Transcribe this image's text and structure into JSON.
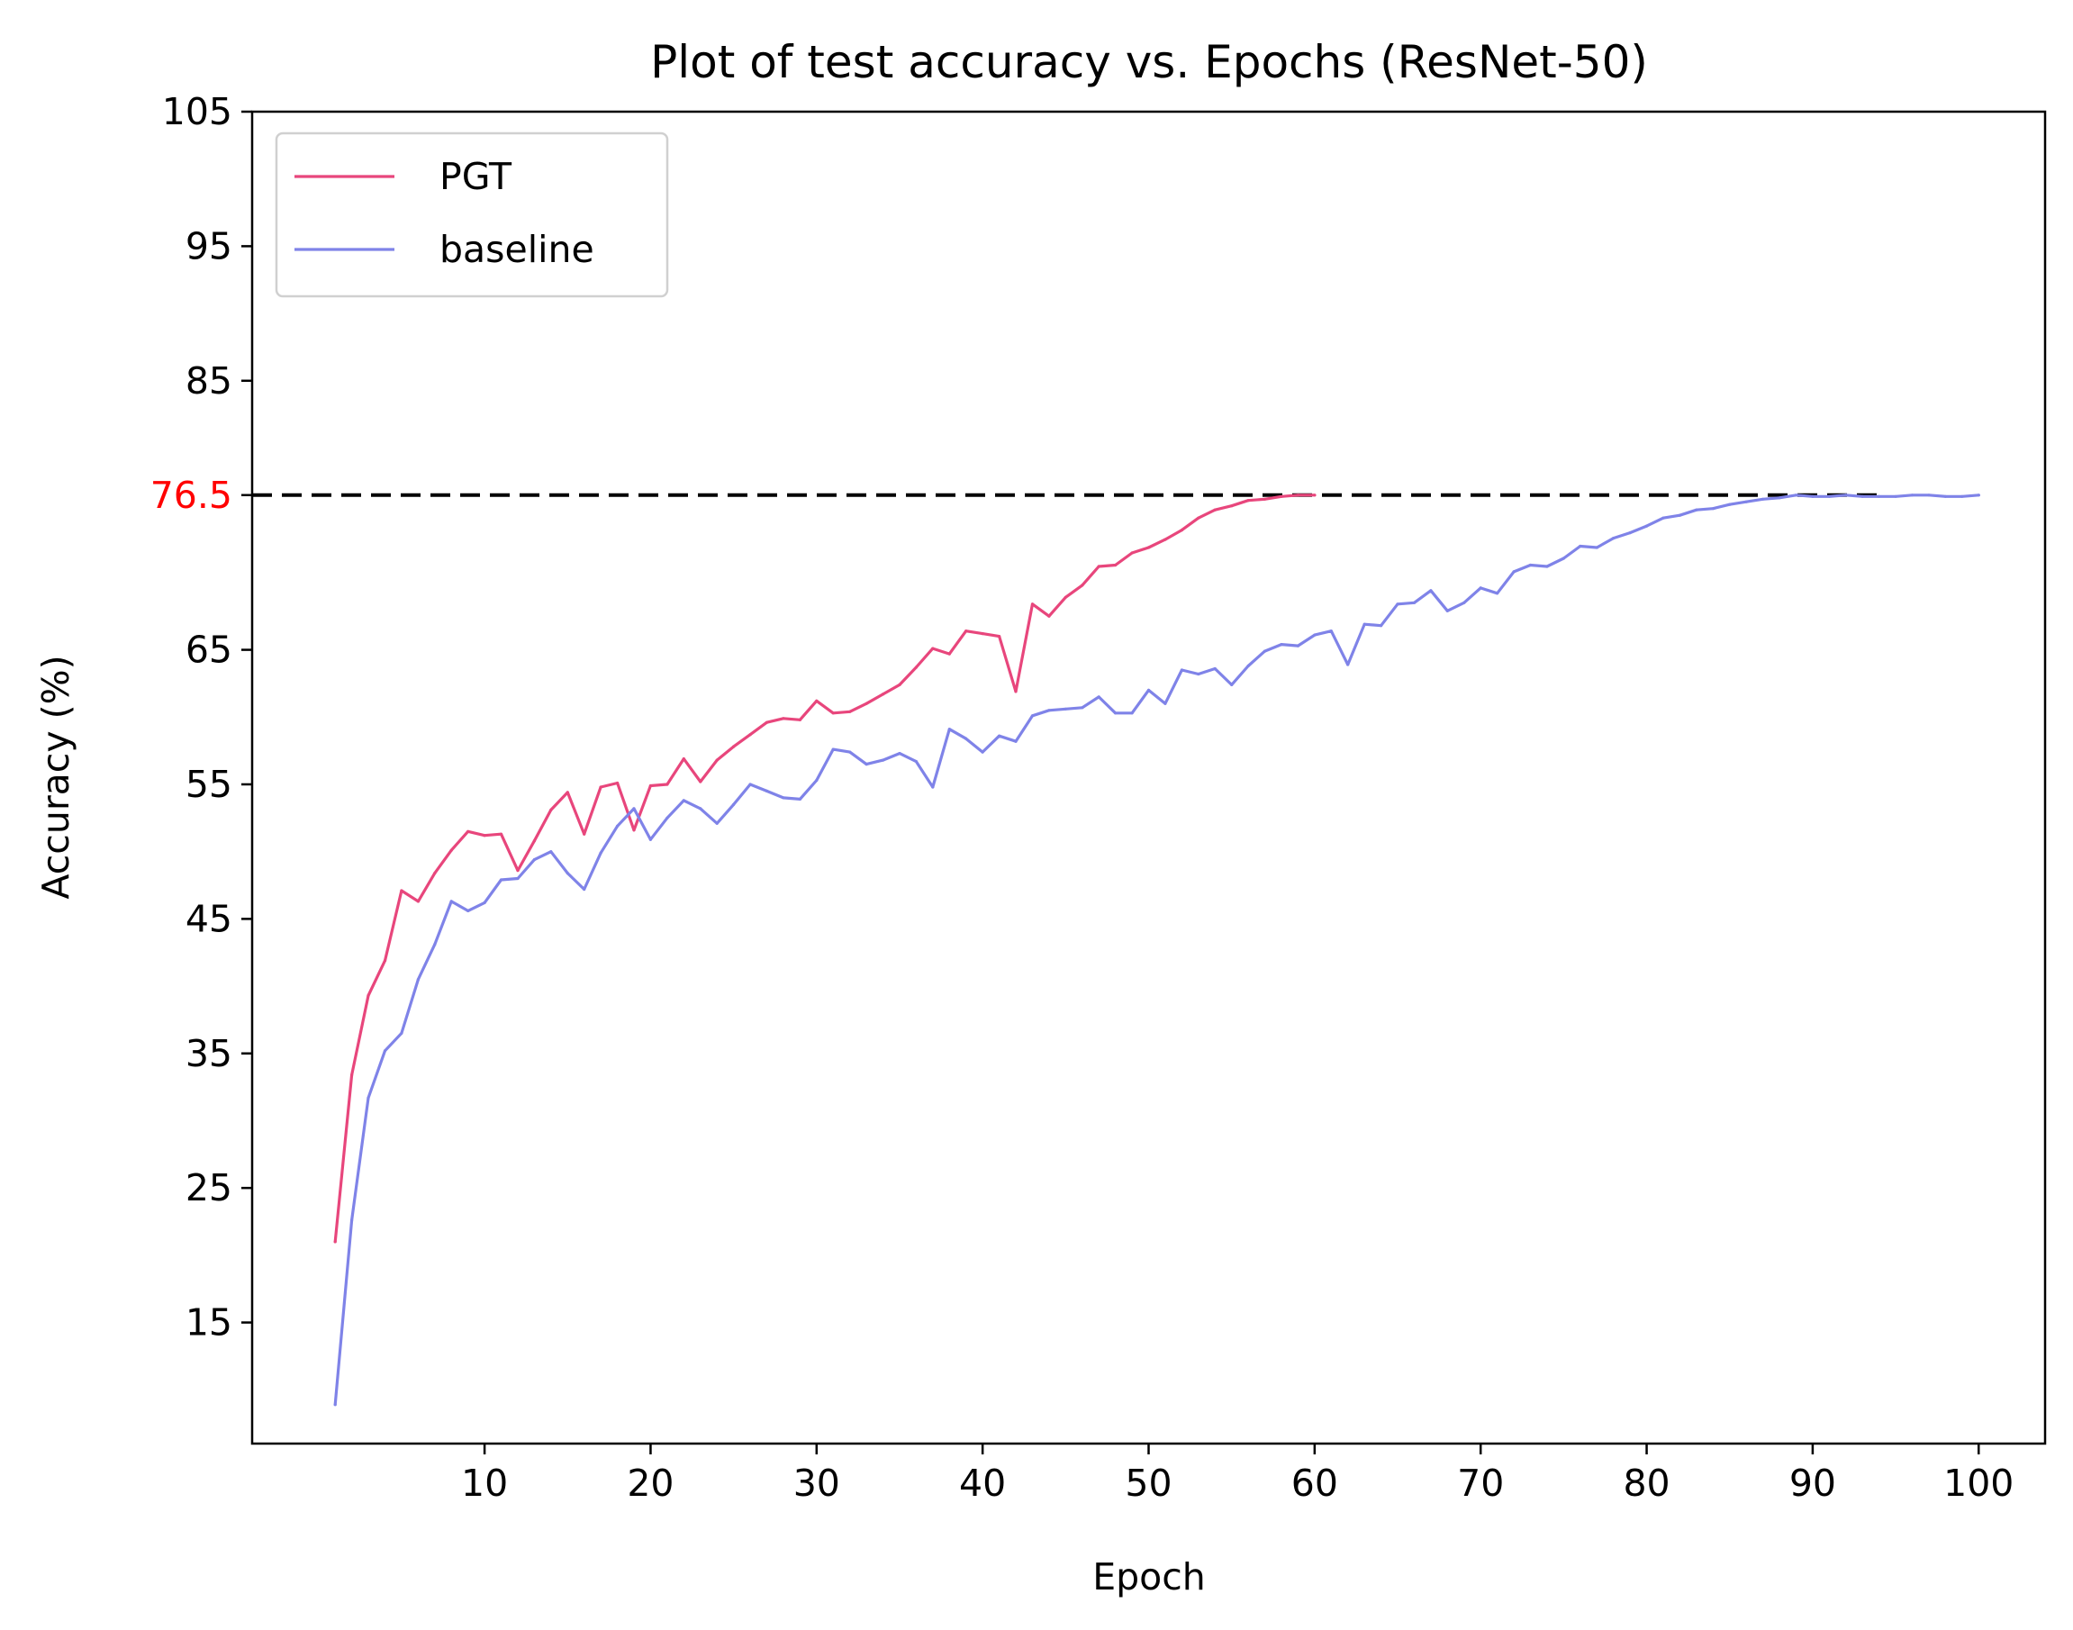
{
  "chart_data": {
    "type": "line",
    "title": "Plot of test accuracy vs. Epochs (ResNet-50)",
    "xlabel": "Epoch",
    "ylabel": "Accuracy (%)",
    "xlim": [
      -4,
      104
    ],
    "ylim": [
      6,
      105
    ],
    "xticks": [
      10,
      20,
      30,
      40,
      50,
      60,
      70,
      80,
      90,
      100
    ],
    "yticks": [
      15,
      25,
      35,
      45,
      55,
      65,
      85,
      95,
      105
    ],
    "reference_line": {
      "y": 76.5,
      "label": "76.5",
      "label_color": "#ff0000",
      "color": "#000000",
      "style": "dashed"
    },
    "grid": false,
    "legend": {
      "position": "top-left"
    },
    "series": [
      {
        "name": "PGT",
        "color": "#e8467c",
        "x": [
          1,
          2,
          3,
          4,
          5,
          6,
          7,
          8,
          9,
          10,
          11,
          12,
          13,
          14,
          15,
          16,
          17,
          18,
          19,
          20,
          21,
          22,
          23,
          24,
          25,
          26,
          27,
          28,
          29,
          30,
          31,
          32,
          33,
          34,
          35,
          36,
          37,
          38,
          39,
          40,
          41,
          42,
          43,
          44,
          45,
          46,
          47,
          48,
          49,
          50,
          51,
          52,
          53,
          54,
          55,
          56,
          57,
          58,
          59,
          60
        ],
        "y": [
          21.0,
          33.4,
          39.3,
          41.9,
          47.1,
          46.3,
          48.4,
          50.1,
          51.5,
          51.2,
          51.3,
          48.6,
          50.8,
          53.1,
          54.4,
          51.3,
          54.8,
          55.1,
          51.6,
          54.9,
          55.0,
          56.9,
          55.2,
          56.8,
          57.8,
          58.7,
          59.6,
          59.9,
          59.8,
          61.2,
          60.3,
          60.4,
          61.0,
          61.7,
          62.4,
          63.7,
          65.1,
          64.7,
          66.4,
          66.2,
          66.0,
          61.9,
          68.4,
          67.5,
          68.9,
          69.8,
          71.2,
          71.3,
          72.2,
          72.6,
          73.2,
          73.9,
          74.8,
          75.4,
          75.7,
          76.1,
          76.2,
          76.4,
          76.5,
          76.5
        ]
      },
      {
        "name": "baseline",
        "color": "#7f83e8",
        "x": [
          1,
          2,
          3,
          4,
          5,
          6,
          7,
          8,
          9,
          10,
          11,
          12,
          13,
          14,
          15,
          16,
          17,
          18,
          19,
          20,
          21,
          22,
          23,
          24,
          25,
          26,
          27,
          28,
          29,
          30,
          31,
          32,
          33,
          34,
          35,
          36,
          37,
          38,
          39,
          40,
          41,
          42,
          43,
          44,
          45,
          46,
          47,
          48,
          49,
          50,
          51,
          52,
          53,
          54,
          55,
          56,
          57,
          58,
          59,
          60,
          61,
          62,
          63,
          64,
          65,
          66,
          67,
          68,
          69,
          70,
          71,
          72,
          73,
          74,
          75,
          76,
          77,
          78,
          79,
          80,
          81,
          82,
          83,
          84,
          85,
          86,
          87,
          88,
          89,
          90,
          91,
          92,
          93,
          94,
          95,
          96,
          97,
          98,
          99,
          100
        ],
        "y": [
          8.9,
          22.6,
          31.7,
          35.2,
          36.5,
          40.5,
          43.1,
          46.3,
          45.6,
          46.2,
          47.9,
          48.0,
          49.4,
          50.0,
          48.4,
          47.2,
          49.9,
          51.9,
          53.2,
          50.9,
          52.5,
          53.8,
          53.2,
          52.1,
          53.5,
          55.0,
          54.5,
          54.0,
          53.9,
          55.3,
          57.6,
          57.4,
          56.5,
          56.8,
          57.3,
          56.7,
          54.8,
          59.1,
          58.4,
          57.4,
          58.6,
          58.2,
          60.1,
          60.5,
          60.6,
          60.7,
          61.5,
          60.3,
          60.3,
          62.0,
          61.0,
          63.5,
          63.2,
          63.6,
          62.4,
          63.8,
          64.9,
          65.4,
          65.3,
          66.1,
          66.4,
          63.9,
          66.9,
          66.8,
          68.4,
          68.5,
          69.4,
          67.9,
          68.5,
          69.6,
          69.2,
          70.8,
          71.3,
          71.2,
          71.8,
          72.7,
          72.6,
          73.3,
          73.7,
          74.2,
          74.8,
          75.0,
          75.4,
          75.5,
          75.8,
          76.0,
          76.2,
          76.3,
          76.5,
          76.4,
          76.4,
          76.5,
          76.4,
          76.4,
          76.4,
          76.5,
          76.5,
          76.4,
          76.4,
          76.5
        ]
      }
    ]
  }
}
